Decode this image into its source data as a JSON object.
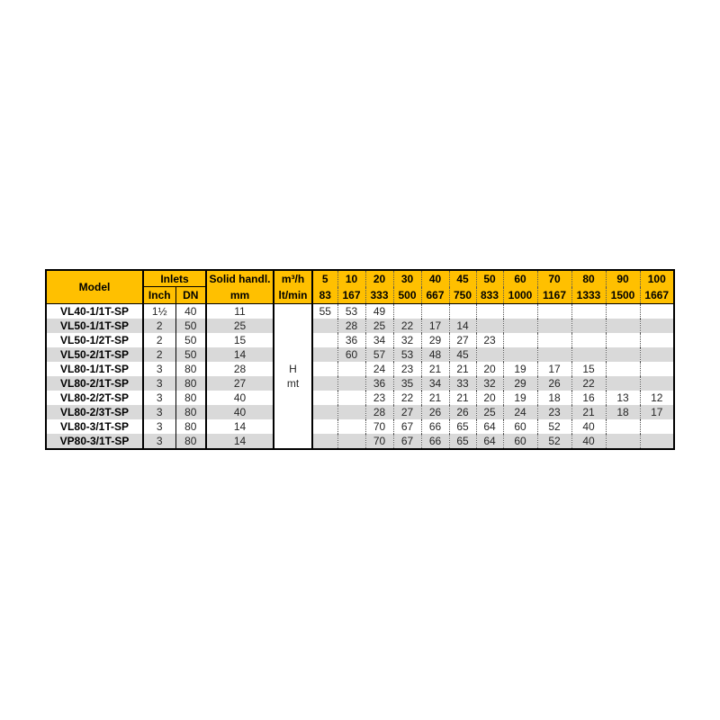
{
  "colors": {
    "header_bg": "#FFC000",
    "row_stripe": "#D9D9D9",
    "border": "#000000",
    "value_text": "#262626"
  },
  "table": {
    "header": {
      "model": "Model",
      "inlets": "Inlets",
      "inch": "Inch",
      "dn": "DN",
      "solid_line1": "Solid handl.",
      "solid_line2": "mm",
      "flow_line1": "m³/h",
      "flow_line2": "lt/min",
      "flow_cols": [
        {
          "m3h": "5",
          "ltmin": "83"
        },
        {
          "m3h": "10",
          "ltmin": "167"
        },
        {
          "m3h": "20",
          "ltmin": "333"
        },
        {
          "m3h": "30",
          "ltmin": "500"
        },
        {
          "m3h": "40",
          "ltmin": "667"
        },
        {
          "m3h": "45",
          "ltmin": "750"
        },
        {
          "m3h": "50",
          "ltmin": "833"
        },
        {
          "m3h": "60",
          "ltmin": "1000"
        },
        {
          "m3h": "70",
          "ltmin": "1167"
        },
        {
          "m3h": "80",
          "ltmin": "1333"
        },
        {
          "m3h": "90",
          "ltmin": "1500"
        },
        {
          "m3h": "100",
          "ltmin": "1667"
        }
      ]
    },
    "head_unit_label": {
      "line1": "H",
      "line2": "mt"
    },
    "rows": [
      {
        "model": "VL40-1/1T-SP",
        "inch": "1½",
        "dn": "40",
        "solid_mm": "11",
        "heads": [
          "55",
          "53",
          "49",
          "",
          "",
          "",
          "",
          "",
          "",
          "",
          "",
          ""
        ]
      },
      {
        "model": "VL50-1/1T-SP",
        "inch": "2",
        "dn": "50",
        "solid_mm": "25",
        "heads": [
          "",
          "28",
          "25",
          "22",
          "17",
          "14",
          "",
          "",
          "",
          "",
          "",
          ""
        ]
      },
      {
        "model": "VL50-1/2T-SP",
        "inch": "2",
        "dn": "50",
        "solid_mm": "15",
        "heads": [
          "",
          "36",
          "34",
          "32",
          "29",
          "27",
          "23",
          "",
          "",
          "",
          "",
          ""
        ]
      },
      {
        "model": "VL50-2/1T-SP",
        "inch": "2",
        "dn": "50",
        "solid_mm": "14",
        "heads": [
          "",
          "60",
          "57",
          "53",
          "48",
          "45",
          "",
          "",
          "",
          "",
          "",
          ""
        ]
      },
      {
        "model": "VL80-1/1T-SP",
        "inch": "3",
        "dn": "80",
        "solid_mm": "28",
        "heads": [
          "",
          "",
          "24",
          "23",
          "21",
          "21",
          "20",
          "19",
          "17",
          "15",
          "",
          ""
        ]
      },
      {
        "model": "VL80-2/1T-SP",
        "inch": "3",
        "dn": "80",
        "solid_mm": "27",
        "heads": [
          "",
          "",
          "36",
          "35",
          "34",
          "33",
          "32",
          "29",
          "26",
          "22",
          "",
          ""
        ]
      },
      {
        "model": "VL80-2/2T-SP",
        "inch": "3",
        "dn": "80",
        "solid_mm": "40",
        "heads": [
          "",
          "",
          "23",
          "22",
          "21",
          "21",
          "20",
          "19",
          "18",
          "16",
          "13",
          "12"
        ]
      },
      {
        "model": "VL80-2/3T-SP",
        "inch": "3",
        "dn": "80",
        "solid_mm": "40",
        "heads": [
          "",
          "",
          "28",
          "27",
          "26",
          "26",
          "25",
          "24",
          "23",
          "21",
          "18",
          "17"
        ]
      },
      {
        "model": "VL80-3/1T-SP",
        "inch": "3",
        "dn": "80",
        "solid_mm": "14",
        "heads": [
          "",
          "",
          "70",
          "67",
          "66",
          "65",
          "64",
          "60",
          "52",
          "40",
          "",
          ""
        ]
      },
      {
        "model": "VP80-3/1T-SP",
        "inch": "3",
        "dn": "80",
        "solid_mm": "14",
        "heads": [
          "",
          "",
          "70",
          "67",
          "66",
          "65",
          "64",
          "60",
          "52",
          "40",
          "",
          ""
        ]
      }
    ]
  }
}
